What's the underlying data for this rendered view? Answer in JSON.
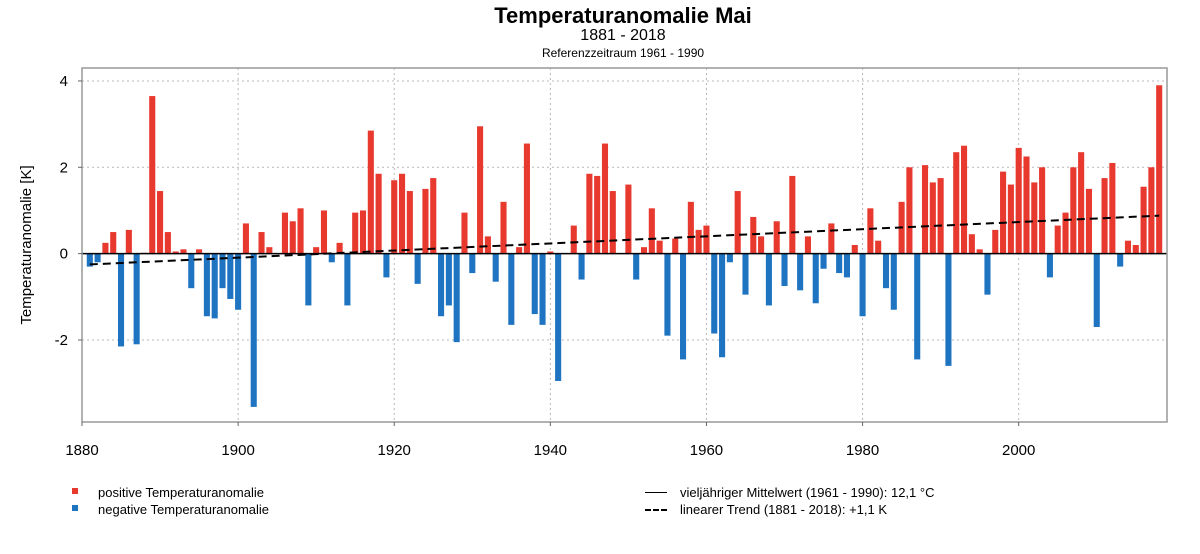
{
  "chart_data": {
    "type": "bar",
    "title": "Temperaturanomalie Mai",
    "subtitle": "1881 - 2018",
    "reference_note": "Referenzzeitraum 1961 - 1990",
    "ylabel": "Temperaturanomalie [K]",
    "xlabel": "",
    "xlim": [
      1880,
      2019
    ],
    "ylim": [
      -3.9,
      4.3
    ],
    "x_ticks": [
      1880,
      1900,
      1920,
      1940,
      1960,
      1980,
      2000
    ],
    "y_ticks": [
      -2,
      0,
      2,
      4
    ],
    "grid": true,
    "x": [
      1881,
      1882,
      1883,
      1884,
      1885,
      1886,
      1887,
      1888,
      1889,
      1890,
      1891,
      1892,
      1893,
      1894,
      1895,
      1896,
      1897,
      1898,
      1899,
      1900,
      1901,
      1902,
      1903,
      1904,
      1905,
      1906,
      1907,
      1908,
      1909,
      1910,
      1911,
      1912,
      1913,
      1914,
      1915,
      1916,
      1917,
      1918,
      1919,
      1920,
      1921,
      1922,
      1923,
      1924,
      1925,
      1926,
      1927,
      1928,
      1929,
      1930,
      1931,
      1932,
      1933,
      1934,
      1935,
      1936,
      1937,
      1938,
      1939,
      1940,
      1941,
      1942,
      1943,
      1944,
      1945,
      1946,
      1947,
      1948,
      1949,
      1950,
      1951,
      1952,
      1953,
      1954,
      1955,
      1956,
      1957,
      1958,
      1959,
      1960,
      1961,
      1962,
      1963,
      1964,
      1965,
      1966,
      1967,
      1968,
      1969,
      1970,
      1971,
      1972,
      1973,
      1974,
      1975,
      1976,
      1977,
      1978,
      1979,
      1980,
      1981,
      1982,
      1983,
      1984,
      1985,
      1986,
      1987,
      1988,
      1989,
      1990,
      1991,
      1992,
      1993,
      1994,
      1995,
      1996,
      1997,
      1998,
      1999,
      2000,
      2001,
      2002,
      2003,
      2004,
      2005,
      2006,
      2007,
      2008,
      2009,
      2010,
      2011,
      2012,
      2013,
      2014,
      2015,
      2016,
      2017,
      2018
    ],
    "values": [
      -0.3,
      -0.2,
      0.25,
      0.5,
      -2.15,
      0.55,
      -2.1,
      0.02,
      3.65,
      1.45,
      0.5,
      0.05,
      0.1,
      -0.8,
      0.1,
      -1.45,
      -1.5,
      -0.8,
      -1.05,
      -1.3,
      0.7,
      -3.55,
      0.5,
      0.15,
      0.0,
      0.95,
      0.75,
      1.05,
      -1.2,
      0.15,
      1.0,
      -0.2,
      0.25,
      -1.2,
      0.95,
      1.0,
      2.85,
      1.85,
      -0.55,
      1.7,
      1.85,
      1.45,
      -0.7,
      1.5,
      1.75,
      -1.45,
      -1.2,
      -2.05,
      0.95,
      -0.45,
      2.95,
      0.4,
      -0.65,
      1.2,
      -1.65,
      0.15,
      2.55,
      -1.4,
      -1.65,
      0.05,
      -2.95,
      0.0,
      0.65,
      -0.6,
      1.85,
      1.8,
      2.55,
      1.45,
      0.0,
      1.6,
      -0.6,
      0.15,
      1.05,
      0.3,
      -1.9,
      0.35,
      -2.45,
      1.2,
      0.55,
      0.65,
      -1.85,
      -2.4,
      -0.2,
      1.45,
      -0.95,
      0.85,
      0.4,
      -1.2,
      0.75,
      -0.75,
      1.8,
      -0.85,
      0.4,
      -1.15,
      -0.35,
      0.7,
      -0.45,
      -0.55,
      0.2,
      -1.45,
      1.05,
      0.3,
      -0.8,
      -1.3,
      1.2,
      2.0,
      -2.45,
      2.05,
      1.65,
      1.75,
      -2.6,
      2.35,
      2.5,
      0.45,
      0.1,
      -0.95,
      0.55,
      1.9,
      1.6,
      2.45,
      2.25,
      1.65,
      2.0,
      -0.55,
      0.65,
      0.95,
      2.0,
      2.35,
      1.5,
      -1.7,
      1.75,
      2.1,
      -0.3,
      0.3,
      0.2,
      1.55,
      2.0,
      3.9
    ],
    "colors": {
      "positive": "#e8392f",
      "negative": "#1f74c2",
      "grid": "#b8b8b8",
      "frame": "#999999"
    },
    "trend": {
      "start_year": 1881,
      "end_year": 2018,
      "start_value": -0.25,
      "end_value": 0.88
    },
    "legend": {
      "positive": "positive Temperaturanomalie",
      "negative": "negative Temperaturanomalie",
      "mean": "vieljähriger Mittelwert (1961 - 1990): 12,1 °C",
      "trend": "linearer Trend (1881 - 2018): +1,1 K"
    }
  }
}
